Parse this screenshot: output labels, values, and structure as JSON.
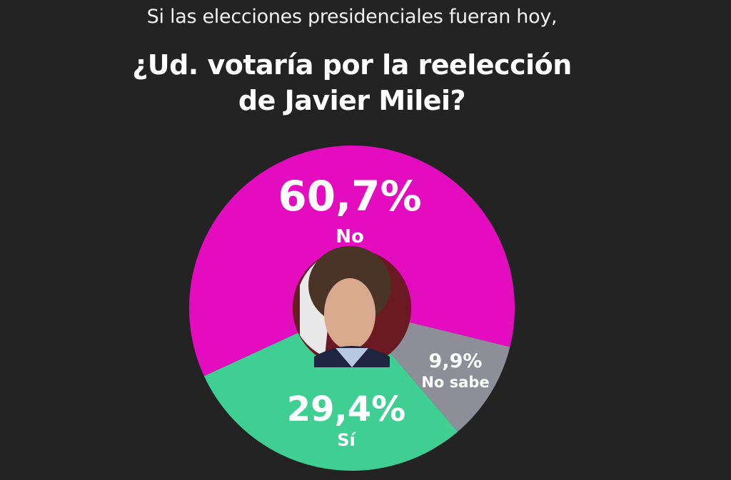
{
  "header": {
    "subtitle": "Si las elecciones presidenciales fueran hoy,",
    "title_line1": "¿Ud. votaría por la reelección",
    "title_line2": "de Javier Milei?"
  },
  "chart_data": {
    "type": "pie",
    "variant": "donut",
    "title": "¿Ud. votaría por la reelección de Javier Milei?",
    "subtitle": "Si las elecciones presidenciales fueran hoy,",
    "slices": [
      {
        "label": "No",
        "value": 60.7,
        "display": "60,7%",
        "color": "#e30cbf"
      },
      {
        "label": "No sabe",
        "value": 9.9,
        "display": "9,9%",
        "color": "#8e8e98"
      },
      {
        "label": "Sí",
        "value": 29.4,
        "display": "29,4%",
        "color": "#3fcf93"
      }
    ],
    "center_image": "portrait photo of Javier Milei"
  }
}
